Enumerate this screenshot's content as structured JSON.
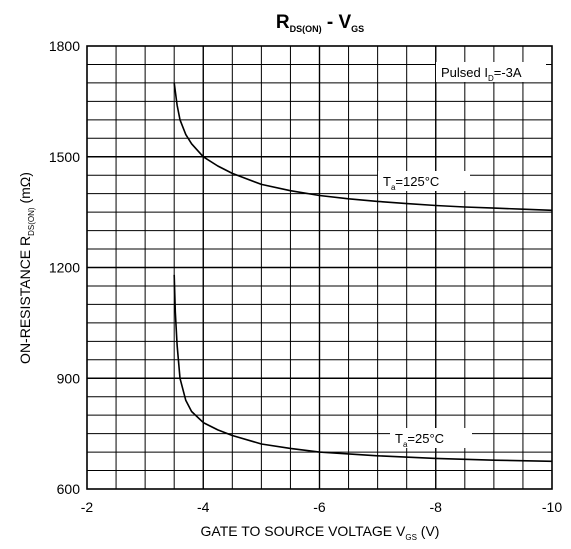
{
  "chart_data": {
    "type": "line",
    "title": {
      "main1": "R",
      "sub1": "DS(ON)",
      "main2": " - V",
      "sub2": "GS"
    },
    "xlabel": {
      "main": "GATE TO SOURCE VOLTAGE V",
      "sub": "GS",
      "tail": " (V)"
    },
    "ylabel": {
      "main": "ON-RESISTANCE R",
      "sub": "DS(ON)",
      "tail": " (mΩ)"
    },
    "xlim": [
      -2,
      -10
    ],
    "ylim": [
      600,
      1800
    ],
    "x_ticks": [
      "-2",
      "-4",
      "-6",
      "-8",
      "-10"
    ],
    "x_tick_values": [
      -2,
      -4,
      -6,
      -8,
      -10
    ],
    "y_ticks": [
      "600",
      "900",
      "1200",
      "1500",
      "1800"
    ],
    "y_tick_values": [
      600,
      900,
      1200,
      1500,
      1800
    ],
    "grid": true,
    "annotations": [
      {
        "main": "Pulsed I",
        "sub": "D",
        "tail": "=-3A"
      },
      {
        "main": "T",
        "sub": "a",
        "tail": "=125°C"
      },
      {
        "main": "T",
        "sub": "a",
        "tail": "=25°C"
      }
    ],
    "series": [
      {
        "x": [
          -3.5,
          -3.55,
          -3.6,
          -3.7,
          -3.8,
          -4.0,
          -4.25,
          -4.5,
          -5.0,
          -5.5,
          -6.0,
          -6.5,
          -7.0,
          -7.5,
          -8.0,
          -8.5,
          -9.0,
          -9.5,
          -10.0
        ],
        "y": [
          1700,
          1640,
          1600,
          1560,
          1535,
          1500,
          1475,
          1455,
          1425,
          1408,
          1395,
          1386,
          1379,
          1373,
          1368,
          1364,
          1361,
          1358,
          1355
        ]
      },
      {
        "x": [
          -3.5,
          -3.52,
          -3.55,
          -3.6,
          -3.7,
          -3.8,
          -4.0,
          -4.25,
          -4.5,
          -5.0,
          -5.5,
          -6.0,
          -7.0,
          -8.0,
          -9.0,
          -10.0
        ],
        "y": [
          1180,
          1080,
          990,
          900,
          840,
          810,
          780,
          760,
          745,
          722,
          710,
          700,
          690,
          683,
          678,
          675
        ]
      }
    ]
  }
}
